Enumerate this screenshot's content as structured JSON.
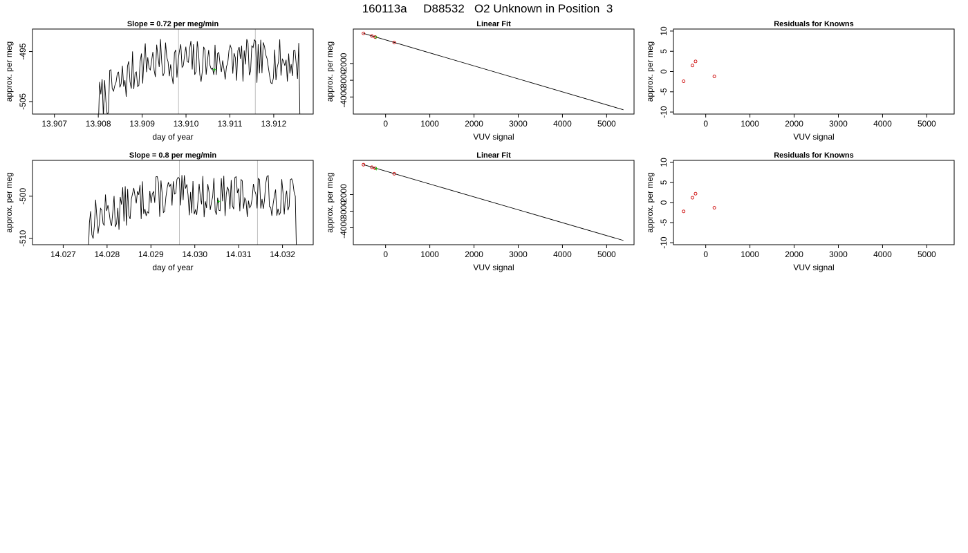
{
  "page_title": "160113a     D88532   O2 Unknown in Position  3",
  "colors": {
    "trace": "#000000",
    "vline": "#bebebe",
    "known": "#cc0000",
    "unknown": "#00cc00",
    "fitline": "#000000"
  },
  "chart_data": [
    {
      "type": "line",
      "title": "Slope =  0.72  per meg/min",
      "xlabel": "day of year",
      "ylabel": "approx. per meg",
      "xlim": [
        13.9065,
        13.9129
      ],
      "ylim": [
        -507.5,
        -490.5
      ],
      "xticks": [
        13.907,
        13.908,
        13.909,
        13.91,
        13.911,
        13.912
      ],
      "xtick_labels": [
        "13.907",
        "13.908",
        "13.909",
        "13.910",
        "13.911",
        "13.912"
      ],
      "yticks": [
        -495,
        -505
      ],
      "ytick_labels": [
        "-495",
        "-505"
      ],
      "vlines": [
        13.90983,
        13.91158
      ],
      "signal": {
        "x_start": 13.908,
        "x_end": 13.9126,
        "n": 160,
        "level_start": -505.0,
        "level_mid": -497.0,
        "plateau_at": 13.9091,
        "amplitude": 3.6,
        "seed": 7
      },
      "mean_marker": {
        "x": 13.91065,
        "y": -498.6
      }
    },
    {
      "type": "scatter",
      "title": "Linear Fit",
      "xlabel": "VUV signal",
      "ylabel": "approx. per meg",
      "xlim": [
        -730,
        5620
      ],
      "ylim": [
        -5020,
        60
      ],
      "xticks": [
        0,
        1000,
        2000,
        3000,
        4000,
        5000
      ],
      "xtick_labels": [
        "0",
        "1000",
        "2000",
        "3000",
        "4000",
        "5000"
      ],
      "yticks": [
        -2000,
        -3000,
        -4000
      ],
      "ytick_labels": [
        "-2000",
        "-3000",
        "-4000"
      ],
      "knowns": [
        {
          "x": -500,
          "y": -200
        },
        {
          "x": -310,
          "y": -355
        },
        {
          "x": -235,
          "y": -420
        },
        {
          "x": 195,
          "y": -745
        }
      ],
      "unknowns": [
        {
          "x": -215,
          "y": -440
        }
      ],
      "fit_line": {
        "x0": -500,
        "y0": -200,
        "x1": 5380,
        "y1": -4765
      }
    },
    {
      "type": "scatter",
      "title": "Residuals for Knowns",
      "xlabel": "VUV signal",
      "ylabel": "approx. per meg",
      "xlim": [
        -730,
        5620
      ],
      "ylim": [
        -10.5,
        10.5
      ],
      "xticks": [
        0,
        1000,
        2000,
        3000,
        4000,
        5000
      ],
      "xtick_labels": [
        "0",
        "1000",
        "2000",
        "3000",
        "4000",
        "5000"
      ],
      "yticks": [
        10,
        5,
        0,
        -5,
        -10
      ],
      "ytick_labels": [
        "10",
        "5",
        "0",
        "-5",
        "-10"
      ],
      "knowns": [
        {
          "x": -500,
          "y": -2.4
        },
        {
          "x": -300,
          "y": 1.5
        },
        {
          "x": -230,
          "y": 2.5
        },
        {
          "x": 195,
          "y": -1.2
        }
      ]
    },
    {
      "type": "line",
      "title": "Slope =  0.8  per meg/min",
      "xlabel": "day of year",
      "ylabel": "approx. per meg",
      "xlim": [
        14.0263,
        14.0327
      ],
      "ylim": [
        -511.5,
        -491.5
      ],
      "xticks": [
        14.027,
        14.028,
        14.029,
        14.03,
        14.031,
        14.032
      ],
      "xtick_labels": [
        "14.027",
        "14.028",
        "14.029",
        "14.030",
        "14.031",
        "14.032"
      ],
      "yticks": [
        -500,
        -510
      ],
      "ytick_labels": [
        "-500",
        "-510"
      ],
      "vlines": [
        14.02965,
        14.03143
      ],
      "signal": {
        "x_start": 14.02757,
        "x_end": 14.03232,
        "n": 170,
        "level_start": -506.0,
        "level_mid": -500.0,
        "plateau_at": 14.029,
        "amplitude": 4.0,
        "seed": 13
      },
      "mean_marker": {
        "x": 14.03055,
        "y": -501.2
      }
    },
    {
      "type": "scatter",
      "title": "Linear Fit",
      "xlabel": "VUV signal",
      "ylabel": "approx. per meg",
      "xlim": [
        -730,
        5620
      ],
      "ylim": [
        -5020,
        60
      ],
      "xticks": [
        0,
        1000,
        2000,
        3000,
        4000,
        5000
      ],
      "xtick_labels": [
        "0",
        "1000",
        "2000",
        "3000",
        "4000",
        "5000"
      ],
      "yticks": [
        -2000,
        -3000,
        -4000
      ],
      "ytick_labels": [
        "-2000",
        "-3000",
        "-4000"
      ],
      "knowns": [
        {
          "x": -500,
          "y": -200
        },
        {
          "x": -310,
          "y": -355
        },
        {
          "x": -235,
          "y": -420
        },
        {
          "x": 195,
          "y": -745
        }
      ],
      "unknowns": [
        {
          "x": -210,
          "y": -445
        }
      ],
      "fit_line": {
        "x0": -500,
        "y0": -200,
        "x1": 5380,
        "y1": -4765
      }
    },
    {
      "type": "scatter",
      "title": "Residuals for Knowns",
      "xlabel": "VUV signal",
      "ylabel": "approx. per meg",
      "xlim": [
        -730,
        5620
      ],
      "ylim": [
        -10.5,
        10.5
      ],
      "xticks": [
        0,
        1000,
        2000,
        3000,
        4000,
        5000
      ],
      "xtick_labels": [
        "0",
        "1000",
        "2000",
        "3000",
        "4000",
        "5000"
      ],
      "yticks": [
        10,
        5,
        0,
        -5,
        -10
      ],
      "ytick_labels": [
        "10",
        "5",
        "0",
        "-5",
        "-10"
      ],
      "knowns": [
        {
          "x": -500,
          "y": -2.2
        },
        {
          "x": -300,
          "y": 1.2
        },
        {
          "x": -230,
          "y": 2.2
        },
        {
          "x": 195,
          "y": -1.3
        }
      ]
    }
  ]
}
